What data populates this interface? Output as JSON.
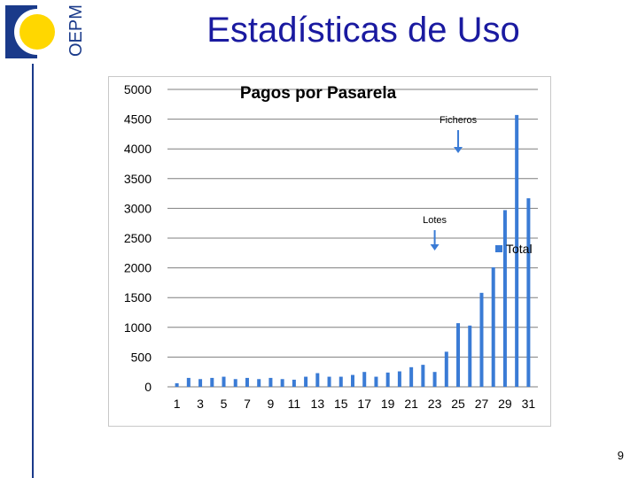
{
  "slide": {
    "title": "Estadísticas de Uso",
    "page_number": "9",
    "brand": "OEPM"
  },
  "colors": {
    "bar": "#3a7bd5",
    "title": "#1a1aa0",
    "brand": "#1a3a8a",
    "arrow": "#3a7bd5"
  },
  "chart_data": {
    "type": "bar",
    "title": "Pagos por Pasarela",
    "legend": [
      "Total"
    ],
    "legend_position": "right",
    "ylim": [
      0,
      5000
    ],
    "yticks": [
      "0",
      "500",
      "1000",
      "1500",
      "2000",
      "2500",
      "3000",
      "3500",
      "4000",
      "4500",
      "5000"
    ],
    "xtick_labels": [
      "1",
      "3",
      "5",
      "7",
      "9",
      "11",
      "13",
      "15",
      "17",
      "19",
      "21",
      "23",
      "25",
      "27",
      "29",
      "31"
    ],
    "grid": true,
    "series": [
      {
        "name": "Total",
        "categories": [
          1,
          2,
          3,
          4,
          5,
          6,
          7,
          8,
          9,
          10,
          11,
          12,
          13,
          14,
          15,
          16,
          17,
          18,
          19,
          20,
          21,
          22,
          23,
          24,
          25,
          26,
          27,
          28,
          29,
          30,
          31
        ],
        "values": [
          60,
          150,
          130,
          150,
          170,
          130,
          150,
          130,
          150,
          130,
          120,
          170,
          230,
          170,
          170,
          200,
          250,
          170,
          240,
          260,
          330,
          370,
          250,
          590,
          1070,
          1030,
          1580,
          2010,
          2970,
          4570,
          3170
        ]
      }
    ],
    "annotations": [
      {
        "text": "Ficheros",
        "at_category": 25
      },
      {
        "text": "Lotes",
        "at_category": 23
      }
    ]
  }
}
